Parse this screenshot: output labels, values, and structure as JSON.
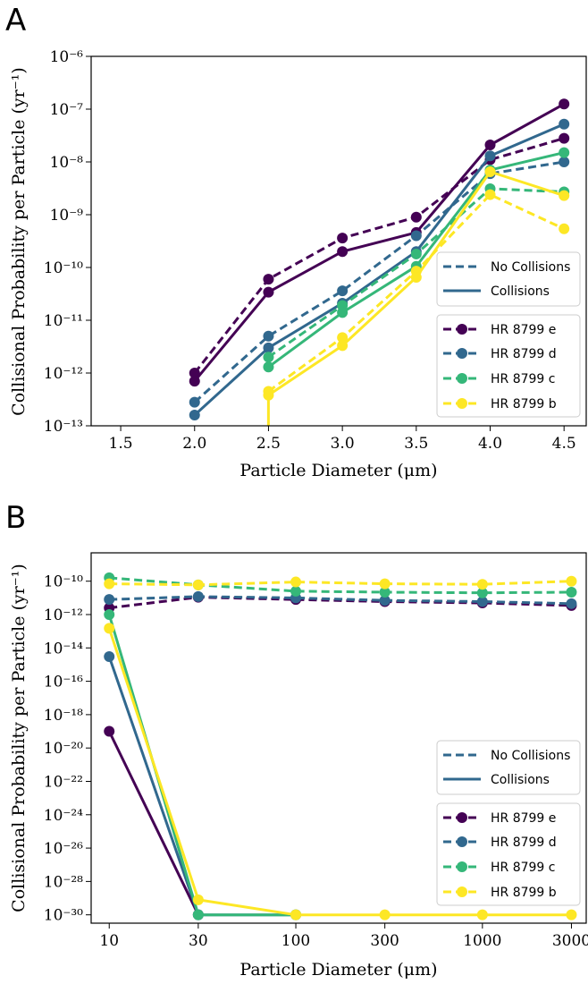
{
  "chart_data": [
    {
      "panel_label": "A",
      "type": "line",
      "xscale": "linear",
      "yscale": "log",
      "xlabel": "Particle Diameter (μm)",
      "ylabel": "Collisional Probability per Particle (yr⁻¹)",
      "xlim": [
        1.3,
        4.65
      ],
      "ylim_exp": [
        -13,
        -6
      ],
      "xticks": [
        1.5,
        2.0,
        2.5,
        3.0,
        3.5,
        4.0,
        4.5
      ],
      "xtick_labels": [
        "1.5",
        "2.0",
        "2.5",
        "3.0",
        "3.5",
        "4.0",
        "4.5"
      ],
      "ytick_exps": [
        -13,
        -12,
        -11,
        -10,
        -9,
        -8,
        -7,
        -6
      ],
      "linestyle_legend": [
        {
          "label": "No Collisions",
          "style": "dashed"
        },
        {
          "label": "Collisions",
          "style": "solid"
        }
      ],
      "series": [
        {
          "name": "HR 8799 e",
          "color": "#440154",
          "style": "dashed",
          "x": [
            2.0,
            2.5,
            3.0,
            3.5,
            4.0,
            4.5
          ],
          "y": [
            1e-12,
            6e-11,
            3.6e-10,
            9e-10,
            1.1e-08,
            2.8e-08
          ]
        },
        {
          "name": "HR 8799 e",
          "color": "#440154",
          "style": "solid",
          "x": [
            2.0,
            2.5,
            3.0,
            3.5,
            4.0,
            4.5
          ],
          "y": [
            7e-13,
            3.4e-11,
            2e-10,
            4.6e-10,
            2.1e-08,
            1.25e-07
          ]
        },
        {
          "name": "HR 8799 d",
          "color": "#31688e",
          "style": "dashed",
          "x": [
            2.0,
            2.5,
            3.0,
            3.5,
            4.0,
            4.5
          ],
          "y": [
            2.8e-13,
            5e-12,
            3.6e-11,
            4e-10,
            6e-09,
            1e-08
          ]
        },
        {
          "name": "HR 8799 d",
          "color": "#31688e",
          "style": "solid",
          "x": [
            2.0,
            2.5,
            3.0,
            3.5,
            4.0,
            4.5
          ],
          "y": [
            1.6e-13,
            3e-12,
            2.1e-11,
            2e-10,
            1.3e-08,
            5.2e-08
          ]
        },
        {
          "name": "HR 8799 c",
          "color": "#35b779",
          "style": "dashed",
          "x": [
            2.5,
            3.0,
            3.5,
            4.0,
            4.5
          ],
          "y": [
            2e-12,
            1.9e-11,
            1.8e-10,
            3.1e-09,
            2.7e-09
          ]
        },
        {
          "name": "HR 8799 c",
          "color": "#35b779",
          "style": "solid",
          "x": [
            2.5,
            3.0,
            3.5,
            4.0,
            4.5
          ],
          "y": [
            1.3e-12,
            1.4e-11,
            1.05e-10,
            7e-09,
            1.5e-08
          ]
        },
        {
          "name": "HR 8799 b",
          "color": "#fde725",
          "style": "dashed",
          "x": [
            2.5,
            3.0,
            3.5,
            4.0,
            4.5
          ],
          "y": [
            4.5e-13,
            4.7e-12,
            8.5e-11,
            2.4e-09,
            5.4e-10
          ]
        },
        {
          "name": "HR 8799 b",
          "color": "#fde725",
          "style": "solid",
          "x": [
            2.5,
            3.0,
            3.5,
            4.0,
            4.5
          ],
          "y": [
            3.8e-13,
            3.3e-12,
            6.5e-11,
            6.5e-09,
            2.3e-09
          ],
          "drop_to_axis_at_x": 2.5
        }
      ],
      "legend": [
        {
          "label": "HR 8799 e",
          "color": "#440154"
        },
        {
          "label": "HR 8799 d",
          "color": "#31688e"
        },
        {
          "label": "HR 8799 c",
          "color": "#35b779"
        },
        {
          "label": "HR 8799 b",
          "color": "#fde725"
        }
      ]
    },
    {
      "panel_label": "B",
      "type": "line",
      "xscale": "log",
      "yscale": "log",
      "xlabel": "Particle Diameter (μm)",
      "ylabel": "Collisional Probability per Particle (yr⁻¹)",
      "xlim": [
        8,
        3600
      ],
      "ylim_exp": [
        -30.5,
        -8.3
      ],
      "xticks": [
        10,
        30,
        100,
        300,
        1000,
        3000
      ],
      "xtick_labels": [
        "10",
        "30",
        "100",
        "300",
        "1000",
        "3000"
      ],
      "ytick_exps": [
        -30,
        -28,
        -26,
        -24,
        -22,
        -20,
        -18,
        -16,
        -14,
        -12,
        -10
      ],
      "linestyle_legend": [
        {
          "label": "No Collisions",
          "style": "dashed"
        },
        {
          "label": "Collisions",
          "style": "solid"
        }
      ],
      "series": [
        {
          "name": "HR 8799 e",
          "color": "#440154",
          "style": "dashed",
          "x": [
            10,
            30,
            100,
            300,
            1000,
            3000
          ],
          "y": [
            2.5e-12,
            1.1e-11,
            8e-12,
            6e-12,
            5e-12,
            3.5e-12
          ]
        },
        {
          "name": "HR 8799 e",
          "color": "#440154",
          "style": "solid",
          "x": [
            10,
            30
          ],
          "y": [
            1e-19,
            1e-30
          ]
        },
        {
          "name": "HR 8799 d",
          "color": "#31688e",
          "style": "dashed",
          "x": [
            10,
            30,
            100,
            300,
            1000,
            3000
          ],
          "y": [
            8e-12,
            1.2e-11,
            1e-11,
            7e-12,
            6e-12,
            4.5e-12
          ]
        },
        {
          "name": "HR 8799 d",
          "color": "#31688e",
          "style": "solid",
          "x": [
            10,
            30,
            100
          ],
          "y": [
            3e-15,
            1e-30,
            1e-30
          ]
        },
        {
          "name": "HR 8799 c",
          "color": "#35b779",
          "style": "dashed",
          "x": [
            10,
            30,
            100,
            300,
            1000,
            3000
          ],
          "y": [
            1.6e-10,
            6e-11,
            2.5e-11,
            2.2e-11,
            2e-11,
            2.2e-11
          ]
        },
        {
          "name": "HR 8799 c",
          "color": "#35b779",
          "style": "solid",
          "x": [
            10,
            30,
            100
          ],
          "y": [
            1e-12,
            1e-30,
            1e-30
          ]
        },
        {
          "name": "HR 8799 b",
          "color": "#fde725",
          "style": "dashed",
          "x": [
            10,
            30,
            100,
            300,
            1000,
            3000
          ],
          "y": [
            7e-11,
            6e-11,
            9e-11,
            7e-11,
            6.5e-11,
            1e-10
          ]
        },
        {
          "name": "HR 8799 b",
          "color": "#fde725",
          "style": "solid",
          "x": [
            10,
            30,
            100,
            300,
            1000,
            3000
          ],
          "y": [
            1.5e-13,
            8e-30,
            1e-30,
            1e-30,
            1e-30,
            1e-30
          ]
        }
      ],
      "legend": [
        {
          "label": "HR 8799 e",
          "color": "#440154"
        },
        {
          "label": "HR 8799 d",
          "color": "#31688e"
        },
        {
          "label": "HR 8799 c",
          "color": "#35b779"
        },
        {
          "label": "HR 8799 b",
          "color": "#fde725"
        }
      ]
    }
  ]
}
